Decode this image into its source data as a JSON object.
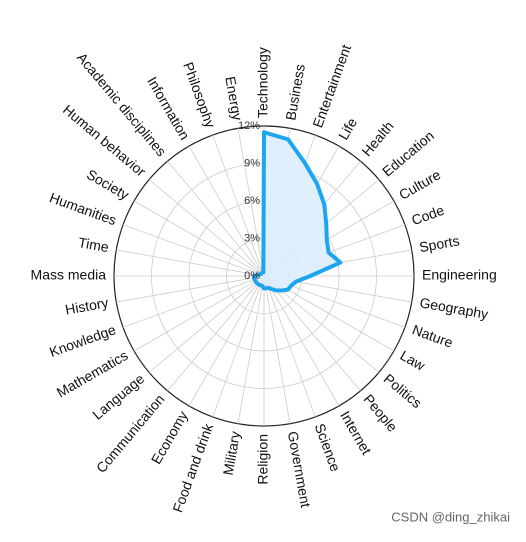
{
  "chart_data": {
    "type": "radar",
    "categories": [
      "Technology",
      "Business",
      "Entertainment",
      "Life",
      "Health",
      "Education",
      "Culture",
      "Code",
      "Sports",
      "Engineering",
      "Geography",
      "Nature",
      "Law",
      "Politics",
      "People",
      "Internet",
      "Science",
      "Government",
      "Religion",
      "Military",
      "Food and drink",
      "Economy",
      "Communication",
      "Language",
      "Mathematics",
      "Knowledge",
      "History",
      "Mass media",
      "Time",
      "Humanities",
      "Society",
      "Human behavior",
      "Academic disciplines",
      "Information",
      "Philosophy",
      "Energy"
    ],
    "values": [
      11.5,
      11.1,
      9.6,
      8.5,
      7.5,
      6.5,
      5.8,
      5.5,
      6.2,
      3.7,
      2.6,
      2.3,
      2.2,
      1.8,
      1.5,
      1.2,
      1.0,
      1.0,
      1.0,
      0.8,
      0.8,
      0.8,
      0.8,
      0.8,
      0.8,
      0.8,
      0.8,
      0.8,
      0.5,
      0.4,
      0.3,
      0.3,
      0.3,
      0.3,
      0.3,
      0.3
    ],
    "color": "#1ea5f0",
    "ylim": [
      0,
      12
    ],
    "yticks": [
      {
        "value": 0,
        "label": "0%"
      },
      {
        "value": 3,
        "label": "3%"
      },
      {
        "value": 6,
        "label": "6%"
      },
      {
        "value": 9,
        "label": "9%"
      },
      {
        "value": 12,
        "label": "12%"
      }
    ],
    "grid": true,
    "watermark": "CSDN @ding_zhikai"
  }
}
